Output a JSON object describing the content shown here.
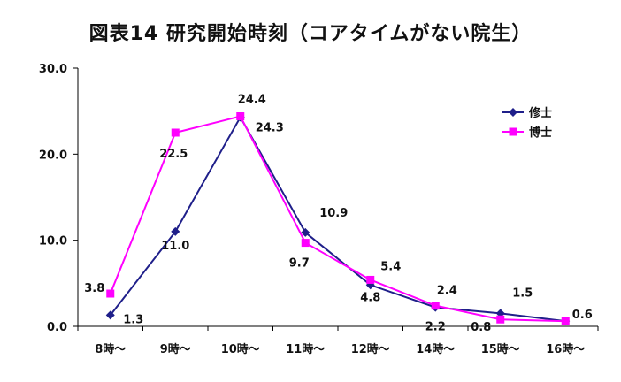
{
  "chart_data": {
    "type": "line",
    "title": "図表14  研究開始時刻（コアタイムがない院生）",
    "categories": [
      "8時～",
      "9時～",
      "10時～",
      "11時～",
      "12時～",
      "14時～",
      "15時～",
      "16時～"
    ],
    "ylim": [
      0,
      30
    ],
    "yticks": [
      "0.0",
      "10.0",
      "20.0",
      "30.0"
    ],
    "ytick_values": [
      0,
      10,
      20,
      30
    ],
    "grid": false,
    "legend_position": "top-right",
    "series": [
      {
        "name": "修士",
        "color": "#1f1f8a",
        "marker": "diamond",
        "values": [
          1.3,
          11.0,
          24.3,
          10.9,
          4.8,
          2.2,
          1.5,
          0.6
        ],
        "labels": [
          "1.3",
          "11.0",
          "24.3",
          "10.9",
          "4.8",
          "2.2",
          "1.5",
          "0.6"
        ]
      },
      {
        "name": "博士",
        "color": "#ff00ff",
        "marker": "square",
        "values": [
          3.8,
          22.5,
          24.4,
          9.7,
          5.4,
          2.4,
          0.8,
          0.6
        ],
        "labels": [
          "3.8",
          "22.5",
          "24.4",
          "9.7",
          "5.4",
          "2.4",
          "0.8",
          "0.6"
        ]
      }
    ]
  }
}
